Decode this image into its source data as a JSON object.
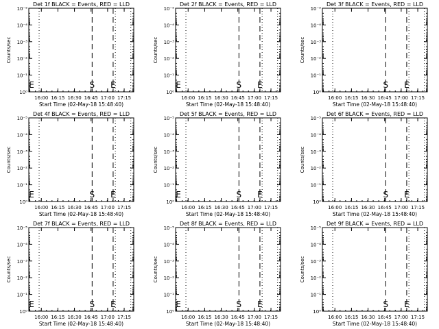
{
  "figure": {
    "background": "#ffffff",
    "foreground": "#000000"
  },
  "chart_data": [
    {
      "type": "line",
      "title": "Det 1f BLACK = Events, RED = LLD",
      "xlabel": "Start Time (02-May-18 15:48:40)",
      "ylabel": "Counts/sec",
      "x_ticks": [
        "16:00",
        "16:15",
        "16:30",
        "16:45",
        "17:00",
        "17:15"
      ],
      "y_ticks": [
        "10⁰",
        "10⁻¹",
        "10⁻²",
        "10⁻³",
        "10⁻⁴",
        "10⁻⁵"
      ],
      "x_range_minutes_after_start": [
        0,
        95
      ],
      "ylim_exp": [
        0,
        -5
      ],
      "log_y": true,
      "markers": [
        {
          "text": "E",
          "at": "15:48"
        },
        {
          "text": "S",
          "at": "16:46"
        },
        {
          "text": "E",
          "at": "17:05"
        }
      ],
      "dashed_lines": [
        "16:46",
        "17:05"
      ],
      "dotted_lines": [
        "15:58",
        "17:07",
        "17:21"
      ],
      "series": []
    },
    {
      "type": "line",
      "title": "Det 2f BLACK = Events, RED = LLD",
      "xlabel": "Start Time (02-May-18 15:48:40)",
      "ylabel": "Counts/sec",
      "x_ticks": [
        "16:00",
        "16:15",
        "16:30",
        "16:45",
        "17:00",
        "17:15"
      ],
      "y_ticks": [
        "10⁰",
        "10⁻¹",
        "10⁻²",
        "10⁻³",
        "10⁻⁴",
        "10⁻⁵"
      ],
      "x_range_minutes_after_start": [
        0,
        95
      ],
      "ylim_exp": [
        0,
        -5
      ],
      "log_y": true,
      "markers": [
        {
          "text": "E",
          "at": "15:48"
        },
        {
          "text": "S",
          "at": "16:46"
        },
        {
          "text": "E",
          "at": "17:05"
        }
      ],
      "dashed_lines": [
        "16:46",
        "17:05"
      ],
      "dotted_lines": [
        "15:58",
        "17:07",
        "17:21"
      ],
      "series": []
    },
    {
      "type": "line",
      "title": "Det 3f BLACK = Events, RED = LLD",
      "xlabel": "Start Time (02-May-18 15:48:40)",
      "ylabel": "Counts/sec",
      "x_ticks": [
        "16:00",
        "16:15",
        "16:30",
        "16:45",
        "17:00",
        "17:15"
      ],
      "y_ticks": [
        "10⁰",
        "10⁻¹",
        "10⁻²",
        "10⁻³",
        "10⁻⁴",
        "10⁻⁵"
      ],
      "x_range_minutes_after_start": [
        0,
        95
      ],
      "ylim_exp": [
        0,
        -5
      ],
      "log_y": true,
      "markers": [
        {
          "text": "S",
          "at": "16:46"
        },
        {
          "text": "E",
          "at": "17:05"
        }
      ],
      "dashed_lines": [
        "16:46",
        "17:05"
      ],
      "dotted_lines": [
        "15:58",
        "17:07",
        "17:21"
      ],
      "series": []
    },
    {
      "type": "line",
      "title": "Det 4f BLACK = Events, RED = LLD",
      "xlabel": "Start Time (02-May-18 15:48:40)",
      "ylabel": "Counts/sec",
      "x_ticks": [
        "16:00",
        "16:15",
        "16:30",
        "16:45",
        "17:00",
        "17:15"
      ],
      "y_ticks": [
        "10⁰",
        "10⁻¹",
        "10⁻²",
        "10⁻³",
        "10⁻⁴",
        "10⁻⁵"
      ],
      "x_range_minutes_after_start": [
        0,
        95
      ],
      "ylim_exp": [
        0,
        -5
      ],
      "log_y": true,
      "markers": [
        {
          "text": "E",
          "at": "15:48"
        },
        {
          "text": "S",
          "at": "16:46"
        },
        {
          "text": "E",
          "at": "17:05"
        }
      ],
      "dashed_lines": [
        "16:46",
        "17:05"
      ],
      "dotted_lines": [
        "15:58",
        "17:07",
        "17:21"
      ],
      "series": []
    },
    {
      "type": "line",
      "title": "Det 5f BLACK = Events, RED = LLD",
      "xlabel": "Start Time (02-May-18 15:48:40)",
      "ylabel": "Counts/sec",
      "x_ticks": [
        "16:00",
        "16:15",
        "16:30",
        "16:45",
        "17:00",
        "17:15"
      ],
      "y_ticks": [
        "10⁰",
        "10⁻¹",
        "10⁻²",
        "10⁻³",
        "10⁻⁴",
        "10⁻⁵"
      ],
      "x_range_minutes_after_start": [
        0,
        95
      ],
      "ylim_exp": [
        0,
        -5
      ],
      "log_y": true,
      "markers": [
        {
          "text": "E",
          "at": "15:48"
        },
        {
          "text": "S",
          "at": "16:46"
        },
        {
          "text": "E",
          "at": "17:05"
        }
      ],
      "dashed_lines": [
        "16:46",
        "17:05"
      ],
      "dotted_lines": [
        "15:58",
        "17:07",
        "17:21"
      ],
      "series": []
    },
    {
      "type": "line",
      "title": "Det 6f BLACK = Events, RED = LLD",
      "xlabel": "Start Time (02-May-18 15:48:40)",
      "ylabel": "Counts/sec",
      "x_ticks": [
        "16:00",
        "16:15",
        "16:30",
        "16:45",
        "17:00",
        "17:15"
      ],
      "y_ticks": [
        "10⁰",
        "10⁻¹",
        "10⁻²",
        "10⁻³",
        "10⁻⁴",
        "10⁻⁵"
      ],
      "x_range_minutes_after_start": [
        0,
        95
      ],
      "ylim_exp": [
        0,
        -5
      ],
      "log_y": true,
      "markers": [
        {
          "text": "S",
          "at": "16:46"
        },
        {
          "text": "E",
          "at": "17:05"
        }
      ],
      "dashed_lines": [
        "16:46",
        "17:05"
      ],
      "dotted_lines": [
        "15:58",
        "17:07",
        "17:21"
      ],
      "series": []
    },
    {
      "type": "line",
      "title": "Det 7f BLACK = Events, RED = LLD",
      "xlabel": "Start Time (02-May-18 15:48:40)",
      "ylabel": "Counts/sec",
      "x_ticks": [
        "16:00",
        "16:15",
        "16:30",
        "16:45",
        "17:00",
        "17:15"
      ],
      "y_ticks": [
        "10⁰",
        "10⁻¹",
        "10⁻²",
        "10⁻³",
        "10⁻⁴",
        "10⁻⁵"
      ],
      "x_range_minutes_after_start": [
        0,
        95
      ],
      "ylim_exp": [
        0,
        -5
      ],
      "log_y": true,
      "markers": [
        {
          "text": "E",
          "at": "15:48"
        },
        {
          "text": "S",
          "at": "16:46"
        },
        {
          "text": "E",
          "at": "17:05"
        }
      ],
      "dashed_lines": [
        "16:46",
        "17:05"
      ],
      "dotted_lines": [
        "15:58",
        "17:07",
        "17:21"
      ],
      "series": []
    },
    {
      "type": "line",
      "title": "Det 8f BLACK = Events, RED = LLD",
      "xlabel": "Start Time (02-May-18 15:48:40)",
      "ylabel": "Counts/sec",
      "x_ticks": [
        "16:00",
        "16:15",
        "16:30",
        "16:45",
        "17:00",
        "17:15"
      ],
      "y_ticks": [
        "10⁰",
        "10⁻¹",
        "10⁻²",
        "10⁻³",
        "10⁻⁴",
        "10⁻⁵"
      ],
      "x_range_minutes_after_start": [
        0,
        95
      ],
      "ylim_exp": [
        0,
        -5
      ],
      "log_y": true,
      "markers": [
        {
          "text": "E",
          "at": "15:48"
        },
        {
          "text": "S",
          "at": "16:46"
        },
        {
          "text": "E",
          "at": "17:05"
        }
      ],
      "dashed_lines": [
        "16:46",
        "17:05"
      ],
      "dotted_lines": [
        "15:58",
        "17:07",
        "17:21"
      ],
      "series": []
    },
    {
      "type": "line",
      "title": "Det 9f BLACK = Events, RED = LLD",
      "xlabel": "Start Time (02-May-18 15:48:40)",
      "ylabel": "Counts/sec",
      "x_ticks": [
        "16:00",
        "16:15",
        "16:30",
        "16:45",
        "17:00",
        "17:15"
      ],
      "y_ticks": [
        "10⁰",
        "10⁻¹",
        "10⁻²",
        "10⁻³",
        "10⁻⁴",
        "10⁻⁵"
      ],
      "x_range_minutes_after_start": [
        0,
        95
      ],
      "ylim_exp": [
        0,
        -5
      ],
      "log_y": true,
      "markers": [
        {
          "text": "S",
          "at": "16:46"
        },
        {
          "text": "E",
          "at": "17:05"
        }
      ],
      "dashed_lines": [
        "16:46",
        "17:05"
      ],
      "dotted_lines": [
        "15:58",
        "17:07",
        "17:21"
      ],
      "series": []
    }
  ]
}
